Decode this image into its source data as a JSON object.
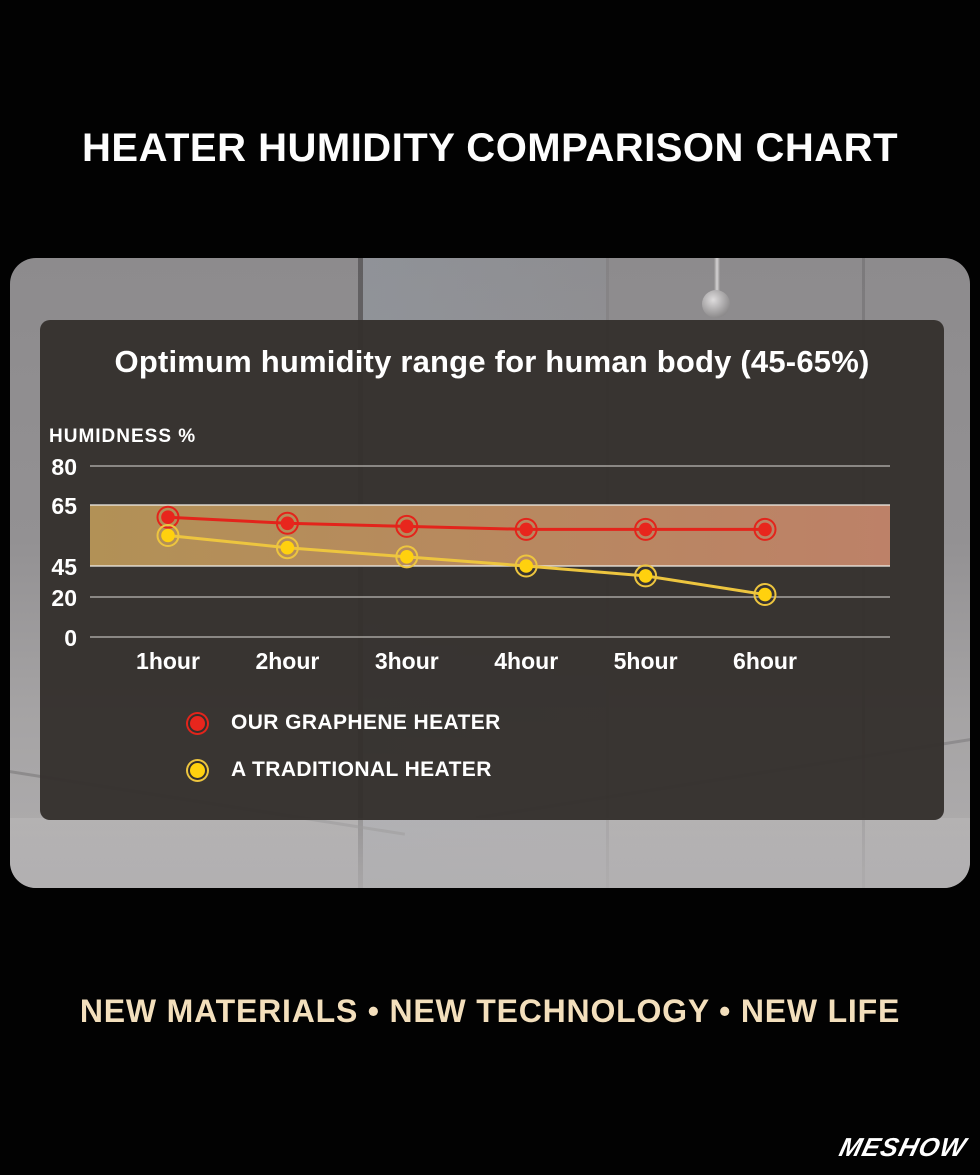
{
  "header": {
    "title": "HEATER HUMIDITY COMPARISON CHART"
  },
  "chart_data": {
    "type": "line",
    "title": "Optimum humidity range for human body (45-65%)",
    "ylabel": "HUMIDNESS %",
    "xlabel": "",
    "categories": [
      "1hour",
      "2hour",
      "3hour",
      "4hour",
      "5hour",
      "6hour"
    ],
    "series": [
      {
        "name": "OUR GRAPHENE HEATER",
        "values": [
          61,
          59,
          58,
          57,
          57,
          57
        ],
        "line_color": "#e3241b",
        "marker_color": "#e8261d"
      },
      {
        "name": "A TRADITIONAL HEATER",
        "values": [
          55,
          51,
          48,
          45,
          37,
          22
        ],
        "line_color": "#edc53f",
        "marker_color": "#ffd10e"
      }
    ],
    "y_ticks": [
      80,
      65,
      45,
      20,
      0
    ],
    "ylim": [
      0,
      80
    ],
    "band": {
      "from": 45,
      "to": 65,
      "color_left": "#b29156",
      "color_right": "#bd8168"
    },
    "grid": true,
    "legend_position": "bottom-left",
    "axis_note": "y tick spacing is non-linear as drawn in source graphic"
  },
  "footer": {
    "tagline": "NEW MATERIALS •  NEW TECHNOLOGY • NEW LIFE",
    "logo": "MESHOW"
  }
}
